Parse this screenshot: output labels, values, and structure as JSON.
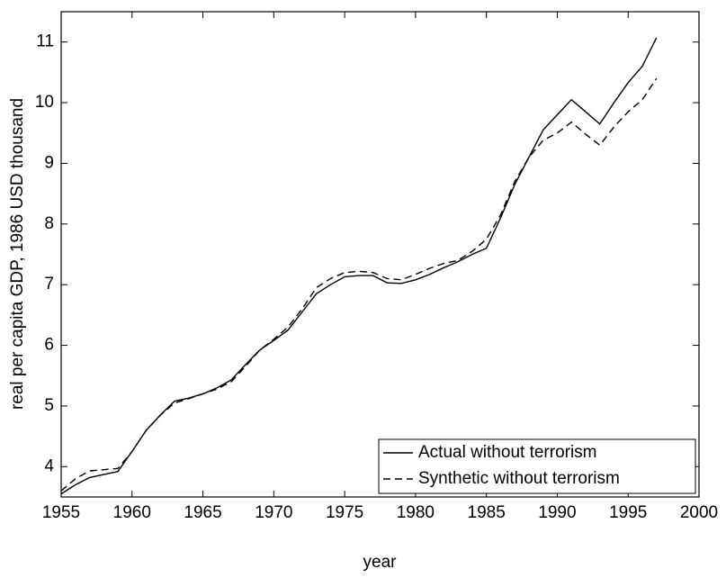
{
  "chart_data": {
    "type": "line",
    "x_label": "year",
    "y_label": "real per capita GDP, 1986 USD thousand",
    "x": [
      1955,
      1956,
      1957,
      1958,
      1959,
      1960,
      1961,
      1962,
      1963,
      1964,
      1965,
      1966,
      1967,
      1968,
      1969,
      1970,
      1971,
      1972,
      1973,
      1974,
      1975,
      1976,
      1977,
      1978,
      1979,
      1980,
      1981,
      1982,
      1983,
      1984,
      1985,
      1986,
      1987,
      1988,
      1989,
      1990,
      1991,
      1992,
      1993,
      1994,
      1995,
      1996,
      1997
    ],
    "series": [
      {
        "name": "Actual without terrorism",
        "color": "#000000",
        "linestyle": "solid",
        "values": [
          3.55,
          3.7,
          3.82,
          3.87,
          3.92,
          4.25,
          4.6,
          4.85,
          5.08,
          5.13,
          5.2,
          5.3,
          5.43,
          5.68,
          5.92,
          6.08,
          6.25,
          6.55,
          6.85,
          7.0,
          7.13,
          7.15,
          7.15,
          7.03,
          7.02,
          7.08,
          7.17,
          7.28,
          7.38,
          7.5,
          7.6,
          8.1,
          8.65,
          9.1,
          9.55,
          9.8,
          10.05,
          9.85,
          9.65,
          10.0,
          10.33,
          10.6,
          11.07
        ]
      },
      {
        "name": "Synthetic without terrorism",
        "color": "#000000",
        "linestyle": "dashed",
        "values": [
          3.6,
          3.8,
          3.93,
          3.95,
          3.97,
          4.25,
          4.6,
          4.85,
          5.05,
          5.12,
          5.2,
          5.28,
          5.4,
          5.65,
          5.92,
          6.1,
          6.3,
          6.6,
          6.95,
          7.1,
          7.2,
          7.22,
          7.2,
          7.1,
          7.08,
          7.17,
          7.27,
          7.35,
          7.4,
          7.55,
          7.75,
          8.15,
          8.7,
          9.1,
          9.38,
          9.5,
          9.68,
          9.48,
          9.3,
          9.6,
          9.85,
          10.05,
          10.4
        ]
      }
    ],
    "xlim": [
      1955,
      2000
    ],
    "xticks": [
      1955,
      1960,
      1965,
      1970,
      1975,
      1980,
      1985,
      1990,
      1995,
      2000
    ],
    "ylim": [
      3.5,
      11.5
    ],
    "yticks": [
      4,
      5,
      6,
      7,
      8,
      9,
      10,
      11
    ],
    "legend": "lower right"
  }
}
